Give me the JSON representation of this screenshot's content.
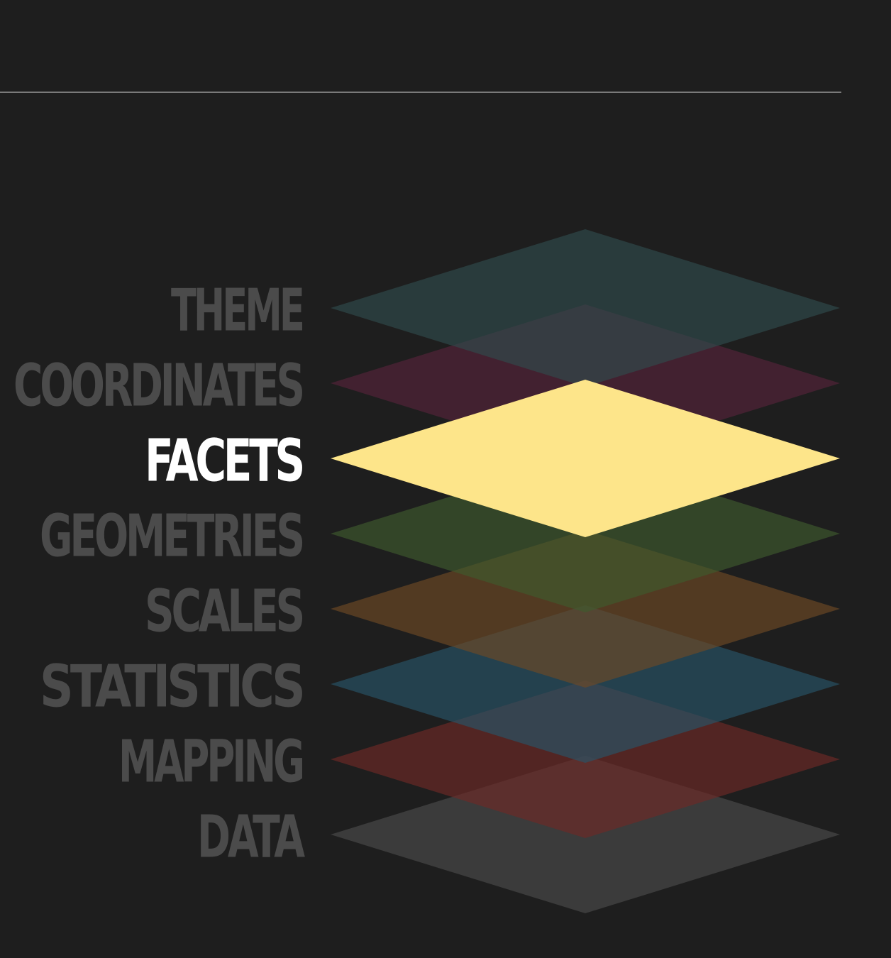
{
  "diagram": {
    "active_layer": "FACETS",
    "inactive_label_color": "#4b4b4b",
    "active_label_color": "#ffffff",
    "layers": [
      {
        "label": "THEME",
        "color": "#2f4c4d",
        "opacity": 0.65
      },
      {
        "label": "COORDINATES",
        "color": "#56243a",
        "opacity": 0.65
      },
      {
        "label": "FACETS",
        "color": "#fde58a",
        "opacity": 1.0
      },
      {
        "label": "GEOMETRIES",
        "color": "#3f5a2e",
        "opacity": 0.65
      },
      {
        "label": "SCALES",
        "color": "#6e4a25",
        "opacity": 0.65
      },
      {
        "label": "STATISTICS",
        "color": "#285468",
        "opacity": 0.65
      },
      {
        "label": "MAPPING",
        "color": "#6e2a27",
        "opacity": 0.65
      },
      {
        "label": "DATA",
        "color": "#4b4b4b",
        "opacity": 0.65
      }
    ]
  }
}
